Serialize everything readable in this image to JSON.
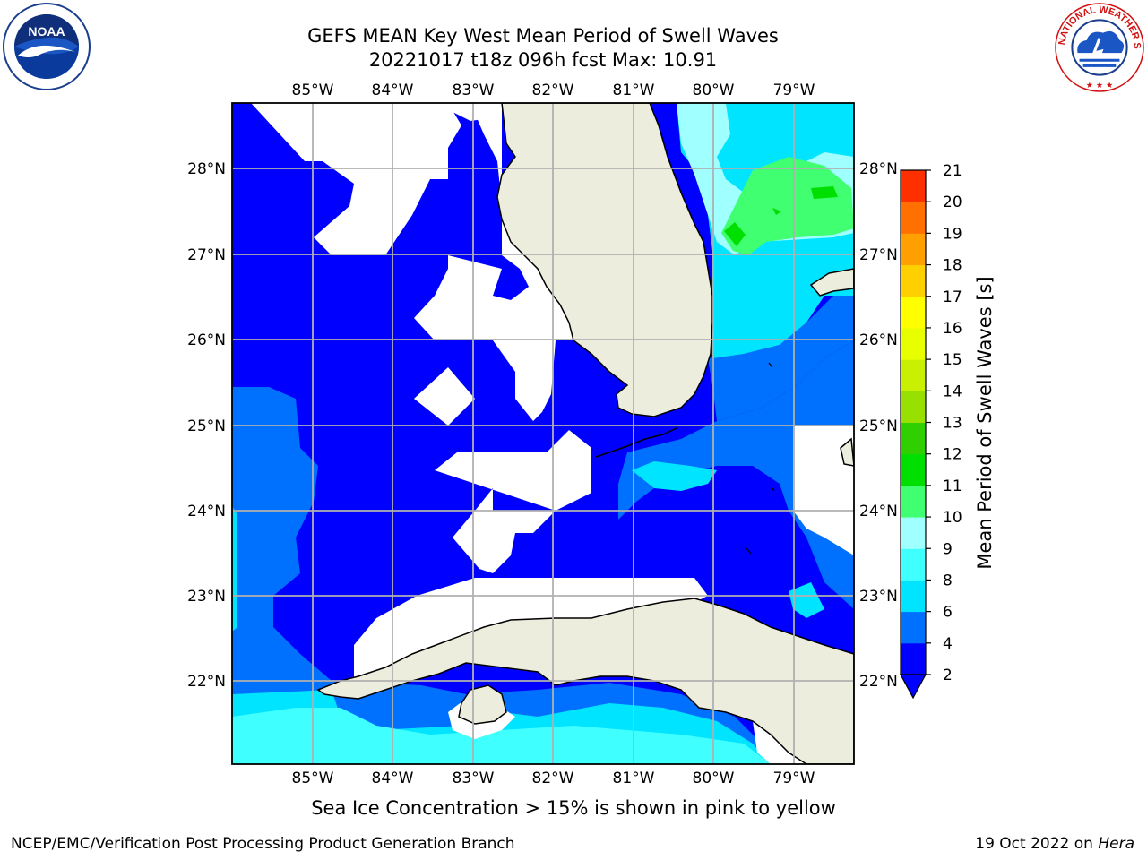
{
  "header": {
    "title_line1": "GEFS MEAN Key West Mean Period of Swell Waves",
    "title_line2": "20221017 t18z 096h fcst   Max: 10.91"
  },
  "logos": {
    "left": "NOAA",
    "right": "NATIONAL WEATHER SERVICE"
  },
  "map": {
    "lon_labels": [
      "85°W",
      "84°W",
      "83°W",
      "82°W",
      "81°W",
      "80°W",
      "79°W"
    ],
    "lat_labels": [
      "28°N",
      "27°N",
      "26°N",
      "25°N",
      "24°N",
      "23°N",
      "22°N"
    ],
    "colors": {
      "land": "#ededde",
      "white": "#ffffff",
      "grid": "#b0b0b0",
      "coast": "#000000"
    }
  },
  "colorbar": {
    "label": "Mean Period of Swell Waves [s]",
    "ticks": [
      "2",
      "4",
      "6",
      "8",
      "9",
      "10",
      "11",
      "12",
      "13",
      "14",
      "15",
      "16",
      "17",
      "18",
      "19",
      "20",
      "21"
    ],
    "colors": [
      "#0000ff",
      "#0070ff",
      "#00e4ff",
      "#40ffff",
      "#a0ffff",
      "#40ff70",
      "#00e000",
      "#30d000",
      "#98e000",
      "#c8f000",
      "#e8ff00",
      "#ffff00",
      "#ffd000",
      "#ffa000",
      "#ff7000",
      "#ff3000",
      "#ff0000"
    ],
    "extend_color": "#0000ff"
  },
  "footer": {
    "note": "Sea Ice Concentration > 15% is shown in pink to yellow",
    "left": "NCEP/EMC/Verification Post Processing Product Generation Branch",
    "right_date": "19 Oct 2022 on ",
    "right_host": "Hera"
  }
}
